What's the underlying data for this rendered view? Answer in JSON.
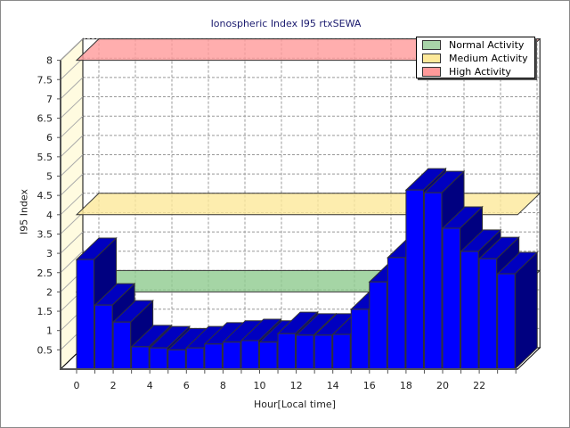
{
  "chart_data": {
    "type": "bar",
    "title": "Ionospheric Index I95 rtxSEWA",
    "xlabel": "Hour[Local time]",
    "ylabel": "I95 Index",
    "ylim": [
      0,
      8
    ],
    "yticks": [
      "0.5",
      "1",
      "1.5",
      "2",
      "2.5",
      "3",
      "3.5",
      "4",
      "4.5",
      "5",
      "5.5",
      "6",
      "6.5",
      "7",
      "7.5",
      "8"
    ],
    "xticks": [
      "0",
      "2",
      "4",
      "6",
      "8",
      "10",
      "12",
      "14",
      "16",
      "18",
      "20",
      "22"
    ],
    "categories": [
      0,
      1,
      2,
      3,
      4,
      5,
      6,
      7,
      8,
      9,
      10,
      11,
      12,
      13,
      14,
      15,
      16,
      17,
      18,
      19,
      20,
      21,
      22,
      23
    ],
    "values": [
      2.84,
      1.66,
      1.22,
      0.58,
      0.55,
      0.5,
      0.55,
      0.65,
      0.7,
      0.74,
      0.7,
      0.92,
      0.88,
      0.88,
      0.9,
      1.55,
      2.26,
      2.89,
      4.64,
      4.57,
      3.65,
      3.05,
      2.86,
      2.47
    ],
    "bar_color": "#0000ff",
    "thresholds": [
      {
        "name": "Normal Activity",
        "value": 2,
        "color": "#8fca8f"
      },
      {
        "name": "Medium Activity",
        "value": 4,
        "color": "#fde99a"
      },
      {
        "name": "High Activity",
        "value": 8,
        "color": "#ff9a9a"
      }
    ],
    "grid": true,
    "legend_position": "top-right"
  }
}
